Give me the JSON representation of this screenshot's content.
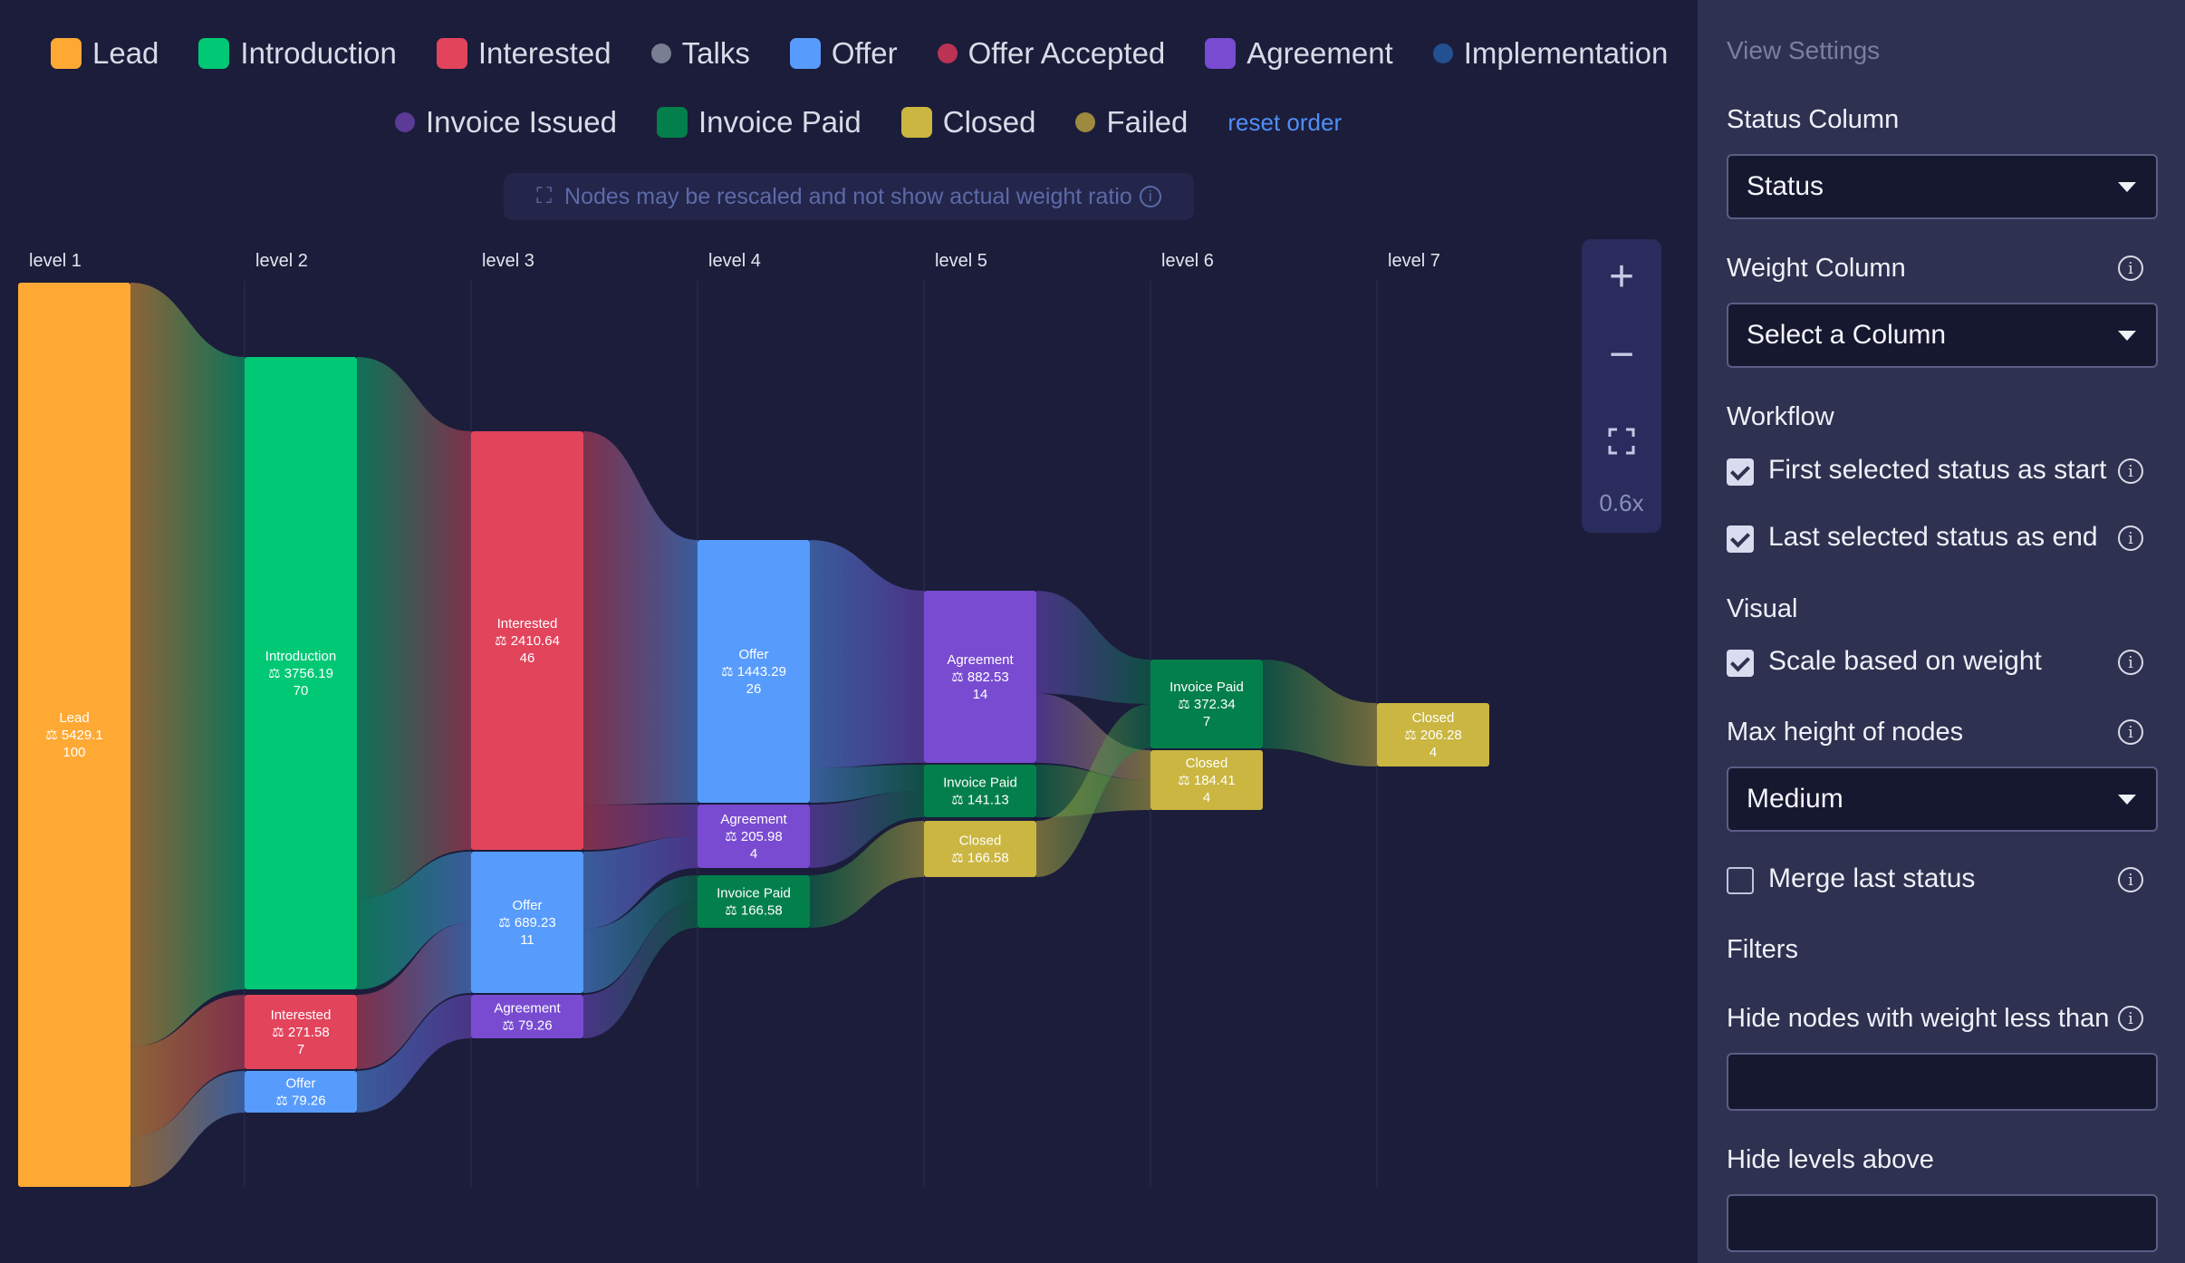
{
  "legend": {
    "items": [
      {
        "label": "Lead",
        "color": "#ffa935",
        "shape": "square"
      },
      {
        "label": "Introduction",
        "color": "#00c875",
        "shape": "square"
      },
      {
        "label": "Interested",
        "color": "#e2445c",
        "shape": "square"
      },
      {
        "label": "Talks",
        "color": "#797e93",
        "shape": "dot"
      },
      {
        "label": "Offer",
        "color": "#579bfc",
        "shape": "square"
      },
      {
        "label": "Offer Accepted",
        "color": "#bb3354",
        "shape": "dot"
      },
      {
        "label": "Agreement",
        "color": "#784bd1",
        "shape": "square"
      },
      {
        "label": "Implementation",
        "color": "#225091",
        "shape": "dot"
      },
      {
        "label": "Invoice Issued",
        "color": "#5b3b95",
        "shape": "dot"
      },
      {
        "label": "Invoice Paid",
        "color": "#037f4c",
        "shape": "square"
      },
      {
        "label": "Closed",
        "color": "#cab641",
        "shape": "square"
      },
      {
        "label": "Failed",
        "color": "#9d8a3f",
        "shape": "dot"
      }
    ],
    "reset_label": "reset order"
  },
  "notice": {
    "text": "Nodes may be rescaled and not show actual weight ratio",
    "icon": "expand-icon",
    "info_icon": "info-icon"
  },
  "chart_data": {
    "type": "sankey",
    "levels": [
      "level 1",
      "level 2",
      "level 3",
      "level 4",
      "level 5",
      "level 6",
      "level 7"
    ],
    "weight_symbol": "⚖",
    "nodes": [
      {
        "id": "l1-lead",
        "level": 0,
        "status": "Lead",
        "weight": "5429.1",
        "count": "100",
        "color": "#ffa935"
      },
      {
        "id": "l2-intro",
        "level": 1,
        "status": "Introduction",
        "weight": "3756.19",
        "count": "70",
        "color": "#00c875"
      },
      {
        "id": "l2-int",
        "level": 1,
        "status": "Interested",
        "weight": "271.58",
        "count": "7",
        "color": "#e2445c"
      },
      {
        "id": "l2-offer",
        "level": 1,
        "status": "Offer",
        "weight": "79.26",
        "count": "",
        "color": "#579bfc"
      },
      {
        "id": "l3-int",
        "level": 2,
        "status": "Interested",
        "weight": "2410.64",
        "count": "46",
        "color": "#e2445c"
      },
      {
        "id": "l3-offer",
        "level": 2,
        "status": "Offer",
        "weight": "689.23",
        "count": "11",
        "color": "#579bfc"
      },
      {
        "id": "l3-agr",
        "level": 2,
        "status": "Agreement",
        "weight": "79.26",
        "count": "",
        "color": "#784bd1"
      },
      {
        "id": "l4-offer",
        "level": 3,
        "status": "Offer",
        "weight": "1443.29",
        "count": "26",
        "color": "#579bfc"
      },
      {
        "id": "l4-agr",
        "level": 3,
        "status": "Agreement",
        "weight": "205.98",
        "count": "4",
        "color": "#784bd1"
      },
      {
        "id": "l4-ip",
        "level": 3,
        "status": "Invoice Paid",
        "weight": "166.58",
        "count": "",
        "color": "#037f4c"
      },
      {
        "id": "l5-agr",
        "level": 4,
        "status": "Agreement",
        "weight": "882.53",
        "count": "14",
        "color": "#784bd1"
      },
      {
        "id": "l5-ip",
        "level": 4,
        "status": "Invoice Paid",
        "weight": "141.13",
        "count": "",
        "color": "#037f4c"
      },
      {
        "id": "l5-cl",
        "level": 4,
        "status": "Closed",
        "weight": "166.58",
        "count": "",
        "color": "#cab641"
      },
      {
        "id": "l6-ip",
        "level": 5,
        "status": "Invoice Paid",
        "weight": "372.34",
        "count": "7",
        "color": "#037f4c"
      },
      {
        "id": "l6-cl",
        "level": 5,
        "status": "Closed",
        "weight": "184.41",
        "count": "4",
        "color": "#cab641"
      },
      {
        "id": "l7-cl",
        "level": 6,
        "status": "Closed",
        "weight": "206.28",
        "count": "4",
        "color": "#cab641"
      }
    ],
    "links": [
      {
        "from": "l1-lead",
        "to": "l2-intro"
      },
      {
        "from": "l1-lead",
        "to": "l2-int"
      },
      {
        "from": "l1-lead",
        "to": "l2-offer"
      },
      {
        "from": "l2-intro",
        "to": "l3-int"
      },
      {
        "from": "l2-intro",
        "to": "l3-offer"
      },
      {
        "from": "l2-int",
        "to": "l3-offer"
      },
      {
        "from": "l2-offer",
        "to": "l3-agr"
      },
      {
        "from": "l3-int",
        "to": "l4-offer"
      },
      {
        "from": "l3-int",
        "to": "l4-agr"
      },
      {
        "from": "l3-offer",
        "to": "l4-agr"
      },
      {
        "from": "l3-offer",
        "to": "l4-ip"
      },
      {
        "from": "l3-agr",
        "to": "l4-ip"
      },
      {
        "from": "l4-offer",
        "to": "l5-agr"
      },
      {
        "from": "l4-offer",
        "to": "l5-ip"
      },
      {
        "from": "l4-agr",
        "to": "l5-ip"
      },
      {
        "from": "l4-ip",
        "to": "l5-cl"
      },
      {
        "from": "l5-agr",
        "to": "l6-ip"
      },
      {
        "from": "l5-agr",
        "to": "l6-cl"
      },
      {
        "from": "l5-ip",
        "to": "l6-cl"
      },
      {
        "from": "l5-cl",
        "to": "l6-ip"
      },
      {
        "from": "l6-ip",
        "to": "l7-cl"
      }
    ]
  },
  "zoom": {
    "plus": "+",
    "minus": "−",
    "level": "0.6x",
    "fit_icon": "fit-screen-icon"
  },
  "settings": {
    "title": "View Settings",
    "status_column_label": "Status Column",
    "status_column_value": "Status",
    "weight_column_label": "Weight Column",
    "weight_column_value": "Select a Column",
    "workflow_label": "Workflow",
    "first_status_label": "First selected status as start",
    "first_status_checked": true,
    "last_status_label": "Last selected status as end",
    "last_status_checked": true,
    "visual_label": "Visual",
    "scale_weight_label": "Scale based on weight",
    "scale_weight_checked": true,
    "max_height_label": "Max height of nodes",
    "max_height_value": "Medium",
    "merge_last_label": "Merge last status",
    "merge_last_checked": false,
    "filters_label": "Filters",
    "hide_nodes_label": "Hide nodes with weight less than",
    "hide_nodes_value": "",
    "hide_levels_label": "Hide levels above",
    "hide_levels_value": ""
  }
}
